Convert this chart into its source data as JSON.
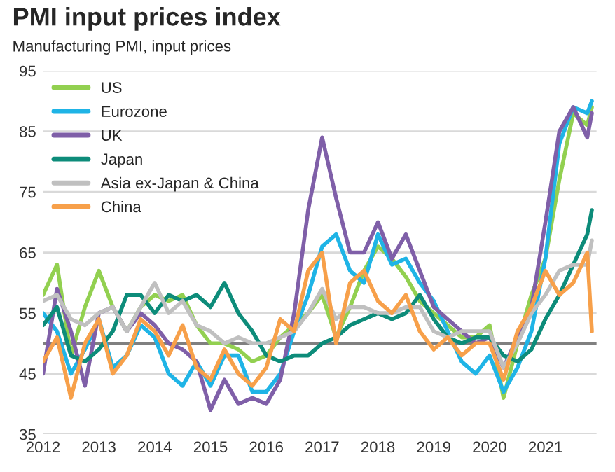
{
  "chart_data": {
    "type": "line",
    "title": "PMI input prices index",
    "subtitle": "Manufacturing PMI, input prices",
    "x": [
      "2012-01",
      "2012-04",
      "2012-07",
      "2012-10",
      "2013-01",
      "2013-04",
      "2013-07",
      "2013-10",
      "2014-01",
      "2014-04",
      "2014-07",
      "2014-10",
      "2015-01",
      "2015-04",
      "2015-07",
      "2015-10",
      "2016-01",
      "2016-04",
      "2016-07",
      "2016-10",
      "2017-01",
      "2017-04",
      "2017-07",
      "2017-10",
      "2018-01",
      "2018-04",
      "2018-07",
      "2018-10",
      "2019-01",
      "2019-04",
      "2019-07",
      "2019-10",
      "2020-01",
      "2020-04",
      "2020-07",
      "2020-10",
      "2021-01",
      "2021-04",
      "2021-07",
      "2021-10",
      "2021-11"
    ],
    "series": [
      {
        "name": "US",
        "color": "#92d050",
        "values": [
          58,
          63,
          48,
          56,
          62,
          56,
          52,
          56,
          58,
          57,
          58,
          53,
          50,
          50,
          49,
          47,
          48,
          51,
          53,
          55,
          58,
          51,
          56,
          62,
          66,
          64,
          61,
          57,
          55,
          53,
          51,
          51,
          53,
          41,
          50,
          58,
          64,
          77,
          88,
          86,
          89
        ]
      },
      {
        "name": "Eurozone",
        "color": "#1fb4e6",
        "values": [
          55,
          52,
          45,
          49,
          54,
          46,
          48,
          53,
          51,
          45,
          43,
          47,
          43,
          48,
          48,
          42,
          42,
          45,
          52,
          58,
          66,
          68,
          62,
          60,
          68,
          63,
          64,
          60,
          57,
          52,
          47,
          45,
          48,
          42,
          46,
          52,
          64,
          83,
          89,
          88,
          90
        ]
      },
      {
        "name": "UK",
        "color": "#7f5fa8",
        "values": [
          45,
          59,
          52,
          43,
          55,
          56,
          52,
          55,
          53,
          50,
          49,
          47,
          39,
          44,
          40,
          41,
          40,
          44,
          55,
          72,
          84,
          74,
          65,
          65,
          70,
          64,
          68,
          62,
          56,
          54,
          52,
          50,
          51,
          46,
          51,
          56,
          70,
          85,
          89,
          84,
          88
        ]
      },
      {
        "name": "Japan",
        "color": "#0d8c7a",
        "values": [
          53,
          56,
          48,
          47,
          49,
          52,
          58,
          58,
          55,
          58,
          57,
          58,
          56,
          60,
          55,
          52,
          48,
          47,
          48,
          48,
          50,
          51,
          53,
          54,
          55,
          54,
          55,
          58,
          54,
          51,
          50,
          51,
          51,
          48,
          47,
          49,
          54,
          58,
          63,
          68,
          72
        ]
      },
      {
        "name": "Asia ex-Japan & China",
        "color": "#c0c0c0",
        "values": [
          57,
          58,
          54,
          53,
          55,
          56,
          52,
          56,
          60,
          55,
          57,
          53,
          52,
          50,
          51,
          50,
          50,
          51,
          52,
          55,
          59,
          54,
          56,
          56,
          55,
          55,
          56,
          56,
          52,
          51,
          52,
          52,
          52,
          46,
          50,
          55,
          58,
          62,
          63,
          63,
          67
        ]
      },
      {
        "name": "China",
        "color": "#f7a04a",
        "values": [
          47,
          51,
          41,
          50,
          54,
          45,
          48,
          54,
          52,
          48,
          53,
          46,
          44,
          49,
          45,
          43,
          46,
          54,
          52,
          62,
          65,
          50,
          60,
          62,
          57,
          55,
          58,
          52,
          49,
          51,
          48,
          50,
          50,
          44,
          52,
          56,
          62,
          58,
          60,
          65,
          52
        ]
      }
    ],
    "xlim": [
      "2012-01",
      "2021-12"
    ],
    "xticks": [
      "2012",
      "2013",
      "2014",
      "2015",
      "2016",
      "2017",
      "2018",
      "2019",
      "2020",
      "2021"
    ],
    "ylim": [
      35,
      95
    ],
    "yticks": [
      35,
      45,
      55,
      65,
      75,
      85,
      95
    ],
    "grid": "y",
    "legend": "top left",
    "ref_lines": [
      {
        "axis": "y",
        "value": 50,
        "color": "#808080"
      }
    ]
  }
}
